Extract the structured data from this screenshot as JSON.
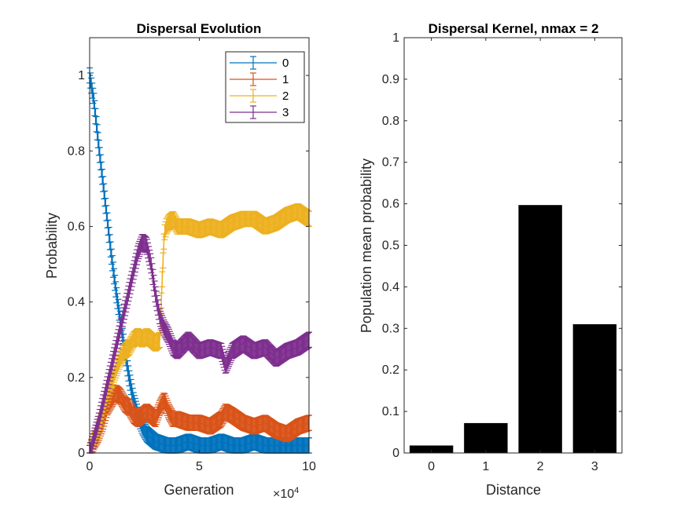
{
  "figure": {
    "background": "#ffffff"
  },
  "chart_data": [
    {
      "type": "line",
      "title": "Dispersal Evolution",
      "xlabel": "Generation",
      "ylabel": "Probability",
      "x_exponent_label": "×10",
      "x_exponent": "4",
      "xlim": [
        0,
        100000
      ],
      "ylim": [
        0,
        1.1
      ],
      "xticks": [
        0,
        50000,
        100000
      ],
      "xtick_labels": [
        "0",
        "5",
        "10"
      ],
      "yticks": [
        0,
        0.2,
        0.4,
        0.6,
        0.8,
        1
      ],
      "ytick_labels": [
        "0",
        "0.2",
        "0.4",
        "0.6",
        "0.8",
        "1"
      ],
      "errorbar_halfwidth": 0.02,
      "legend": {
        "location": "top-right",
        "entries": [
          "0",
          "1",
          "2",
          "3"
        ]
      },
      "series": [
        {
          "name": "0",
          "color": "#0072BD",
          "x": [
            0,
            2000,
            4000,
            6000,
            8000,
            10000,
            12000,
            14000,
            16000,
            18000,
            20000,
            22000,
            24000,
            26000,
            28000,
            30000,
            35000,
            40000,
            45000,
            50000,
            55000,
            60000,
            65000,
            70000,
            75000,
            80000,
            85000,
            90000,
            95000,
            100000
          ],
          "y": [
            1.0,
            0.93,
            0.82,
            0.72,
            0.62,
            0.52,
            0.43,
            0.35,
            0.27,
            0.2,
            0.14,
            0.1,
            0.07,
            0.05,
            0.04,
            0.03,
            0.02,
            0.02,
            0.03,
            0.02,
            0.02,
            0.03,
            0.02,
            0.02,
            0.03,
            0.02,
            0.02,
            0.02,
            0.02,
            0.02
          ]
        },
        {
          "name": "1",
          "color": "#D95319",
          "x": [
            0,
            2000,
            4000,
            6000,
            8000,
            10000,
            12000,
            14000,
            16000,
            18000,
            20000,
            22000,
            24000,
            26000,
            28000,
            30000,
            32000,
            34000,
            36000,
            38000,
            40000,
            45000,
            50000,
            55000,
            60000,
            62000,
            65000,
            70000,
            75000,
            80000,
            85000,
            90000,
            95000,
            100000
          ],
          "y": [
            0.0,
            0.03,
            0.05,
            0.08,
            0.12,
            0.14,
            0.16,
            0.15,
            0.13,
            0.12,
            0.1,
            0.09,
            0.1,
            0.11,
            0.1,
            0.09,
            0.12,
            0.14,
            0.11,
            0.09,
            0.09,
            0.08,
            0.08,
            0.07,
            0.09,
            0.11,
            0.1,
            0.08,
            0.07,
            0.08,
            0.06,
            0.05,
            0.07,
            0.08
          ]
        },
        {
          "name": "2",
          "color": "#EDB120",
          "x": [
            0,
            2000,
            4000,
            6000,
            8000,
            10000,
            12000,
            14000,
            16000,
            18000,
            20000,
            22000,
            24000,
            26000,
            28000,
            30000,
            32000,
            33000,
            34000,
            35000,
            36000,
            38000,
            40000,
            45000,
            50000,
            55000,
            60000,
            65000,
            70000,
            75000,
            80000,
            85000,
            90000,
            95000,
            100000
          ],
          "y": [
            0.0,
            0.03,
            0.06,
            0.1,
            0.15,
            0.19,
            0.22,
            0.25,
            0.27,
            0.28,
            0.3,
            0.31,
            0.3,
            0.31,
            0.3,
            0.29,
            0.3,
            0.45,
            0.58,
            0.6,
            0.61,
            0.62,
            0.6,
            0.6,
            0.59,
            0.6,
            0.59,
            0.61,
            0.62,
            0.62,
            0.6,
            0.61,
            0.63,
            0.64,
            0.62
          ]
        },
        {
          "name": "3",
          "color": "#7E2F8E",
          "x": [
            0,
            2000,
            4000,
            6000,
            8000,
            10000,
            12000,
            14000,
            16000,
            18000,
            20000,
            22000,
            24000,
            26000,
            28000,
            30000,
            32000,
            34000,
            36000,
            38000,
            40000,
            45000,
            50000,
            55000,
            60000,
            62000,
            65000,
            70000,
            75000,
            80000,
            85000,
            90000,
            95000,
            100000
          ],
          "y": [
            0.0,
            0.04,
            0.08,
            0.13,
            0.18,
            0.23,
            0.28,
            0.33,
            0.38,
            0.43,
            0.48,
            0.53,
            0.56,
            0.55,
            0.5,
            0.42,
            0.36,
            0.33,
            0.31,
            0.28,
            0.27,
            0.3,
            0.27,
            0.28,
            0.27,
            0.23,
            0.27,
            0.29,
            0.27,
            0.28,
            0.25,
            0.27,
            0.28,
            0.3
          ]
        }
      ]
    },
    {
      "type": "bar",
      "title": "Dispersal Kernel, nmax = 2",
      "xlabel": "Distance",
      "ylabel": "Population mean probability",
      "categories": [
        "0",
        "1",
        "2",
        "3"
      ],
      "values": [
        0.018,
        0.072,
        0.597,
        0.31
      ],
      "bar_color": "#000000",
      "ylim": [
        0,
        1
      ],
      "yticks": [
        0,
        0.1,
        0.2,
        0.3,
        0.4,
        0.5,
        0.6,
        0.7,
        0.8,
        0.9,
        1
      ],
      "ytick_labels": [
        "0",
        "0.1",
        "0.2",
        "0.3",
        "0.4",
        "0.5",
        "0.6",
        "0.7",
        "0.8",
        "0.9",
        "1"
      ]
    }
  ]
}
